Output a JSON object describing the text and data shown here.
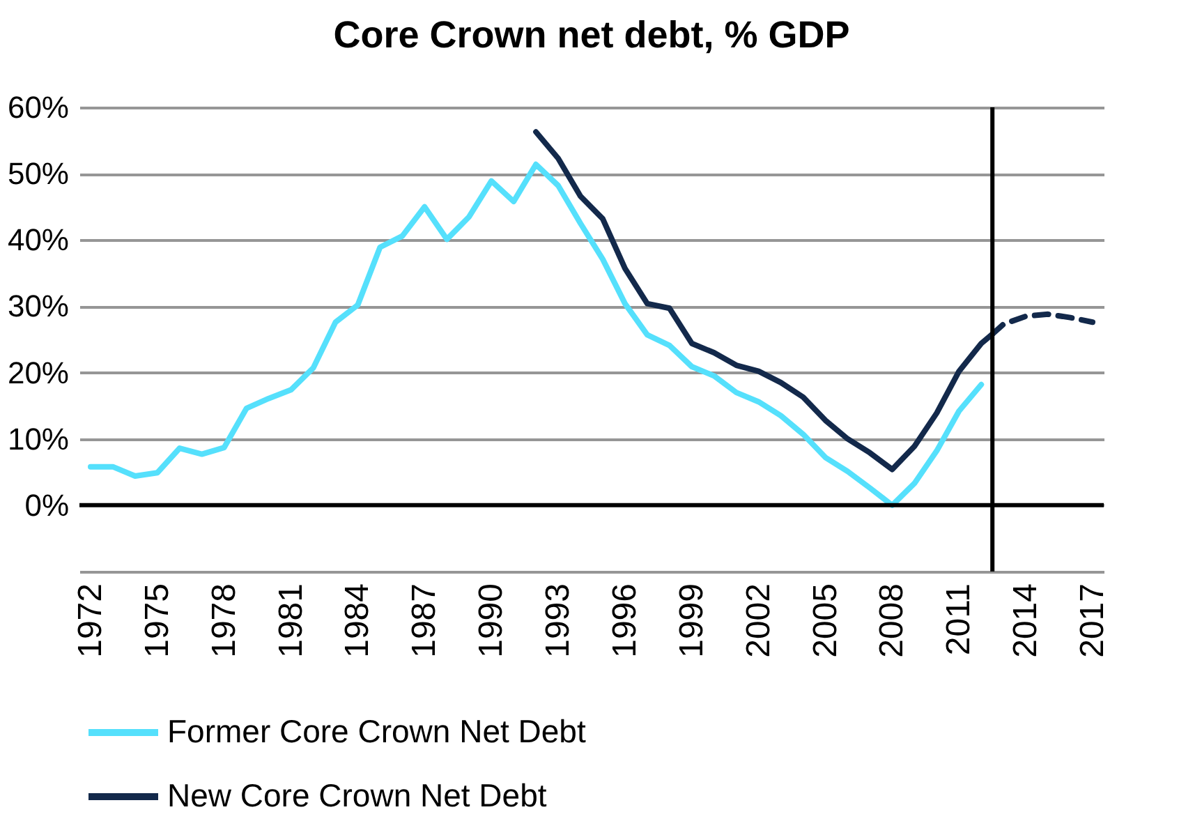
{
  "chart_data": {
    "type": "line",
    "title": "Core Crown net debt, % GDP",
    "xlim": [
      1971.5,
      2017.5
    ],
    "xticks": [
      1972,
      1975,
      1978,
      1981,
      1984,
      1987,
      1990,
      1993,
      1996,
      1999,
      2002,
      2005,
      2008,
      2011,
      2014,
      2017
    ],
    "ylim": [
      -10,
      60
    ],
    "yticks": [
      {
        "value": -10,
        "label": null
      },
      {
        "value": 0,
        "label": "0%"
      },
      {
        "value": 10,
        "label": "10%"
      },
      {
        "value": 20,
        "label": "20%"
      },
      {
        "value": 30,
        "label": "30%"
      },
      {
        "value": 40,
        "label": "40%"
      },
      {
        "value": 50,
        "label": "50%"
      },
      {
        "value": 60,
        "label": "60%"
      }
    ],
    "grid": "y",
    "legend": "bottom",
    "marker": "none",
    "series": [
      {
        "name": "Former Core Crown Net Debt",
        "color": "#55e0fc",
        "line_style": "solid",
        "x": [
          1972,
          1973,
          1974,
          1975,
          1976,
          1977,
          1978,
          1979,
          1980,
          1981,
          1982,
          1983,
          1984,
          1985,
          1986,
          1987,
          1988,
          1989,
          1990,
          1991,
          1992,
          1993,
          1994,
          1995,
          1996,
          1997,
          1998,
          1999,
          2000,
          2001,
          2002,
          2003,
          2004,
          2005,
          2006,
          2007,
          2008,
          2009,
          2010,
          2011,
          2012
        ],
        "values": [
          5.8,
          5.8,
          4.4,
          4.9,
          8.6,
          7.7,
          8.7,
          14.6,
          16.1,
          17.4,
          20.7,
          27.6,
          30.2,
          38.9,
          40.6,
          45.0,
          40.1,
          43.5,
          48.9,
          45.8,
          51.4,
          48.2,
          42.5,
          37.1,
          30.4,
          25.7,
          24.1,
          20.9,
          19.5,
          17.0,
          15.6,
          13.5,
          10.7,
          7.2,
          5.1,
          2.6,
          0,
          3.3,
          8.2,
          14.2,
          18.2
        ]
      },
      {
        "name": "New Core Crown Net Debt",
        "color": "#13294b",
        "line_style": "solid",
        "x": [
          1992,
          1993,
          1994,
          1995,
          1996,
          1997,
          1998,
          1999,
          2000,
          2001,
          2002,
          2003,
          2004,
          2005,
          2006,
          2007,
          2008,
          2009,
          2010,
          2011,
          2012,
          2012.5
        ],
        "values": [
          56.3,
          52.3,
          46.6,
          43.2,
          35.7,
          30.4,
          29.7,
          24.4,
          23.0,
          21.1,
          20.2,
          18.5,
          16.3,
          12.8,
          10.0,
          7.9,
          5.4,
          8.9,
          13.9,
          20.2,
          24.4,
          25.8
        ]
      },
      {
        "color": "#13294b",
        "line_style": "dashed",
        "x": [
          2012.5,
          2013,
          2014,
          2015,
          2016,
          2017
        ],
        "values": [
          25.8,
          27.3,
          28.5,
          28.8,
          28.3,
          27.6
        ]
      }
    ],
    "ref_lines": [
      {
        "axis": "y",
        "value": 0,
        "color": "#000000"
      },
      {
        "axis": "x",
        "value": 2012.5,
        "color": "#000000"
      }
    ]
  }
}
